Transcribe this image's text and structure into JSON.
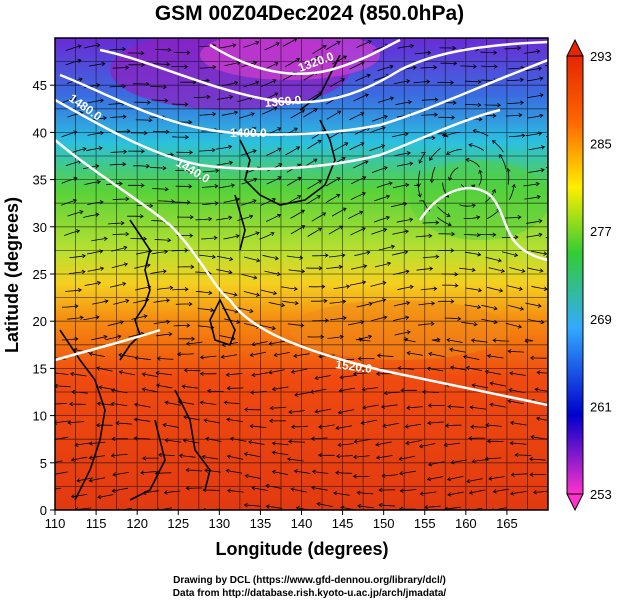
{
  "title": "GSM 00Z04Dec2024 (850.0hPa)",
  "axes": {
    "xlabel": "Longitude (degrees)",
    "ylabel": "Latitude  (degrees)",
    "x_ticks": [
      "110",
      "115",
      "120",
      "125",
      "130",
      "135",
      "140",
      "145",
      "150",
      "155",
      "160",
      "165"
    ],
    "y_ticks": [
      "0",
      "5",
      "10",
      "15",
      "20",
      "25",
      "30",
      "35",
      "40",
      "45"
    ],
    "xlim": [
      110,
      170
    ],
    "ylim": [
      0,
      50
    ]
  },
  "colorbar": {
    "ticks": [
      "293",
      "285",
      "277",
      "269",
      "261",
      "253"
    ],
    "range": [
      253,
      293
    ],
    "colors": [
      "#ff33cc",
      "#0000cc",
      "#33aaff",
      "#33cc33",
      "#ffee00",
      "#ff6600",
      "#e62600"
    ]
  },
  "contours": [
    {
      "label": "1320.0"
    },
    {
      "label": "1360.0"
    },
    {
      "label": "1400.0"
    },
    {
      "label": "1440.0"
    },
    {
      "label": "1480.0"
    },
    {
      "label": "1520.0"
    }
  ],
  "credits": {
    "line1": "Drawing by DCL (https://www.gfd-dennou.org/library/dcl/)",
    "line2": "Data from http://database.rish.kyoto-u.ac.jp/arch/jmadata/"
  }
}
